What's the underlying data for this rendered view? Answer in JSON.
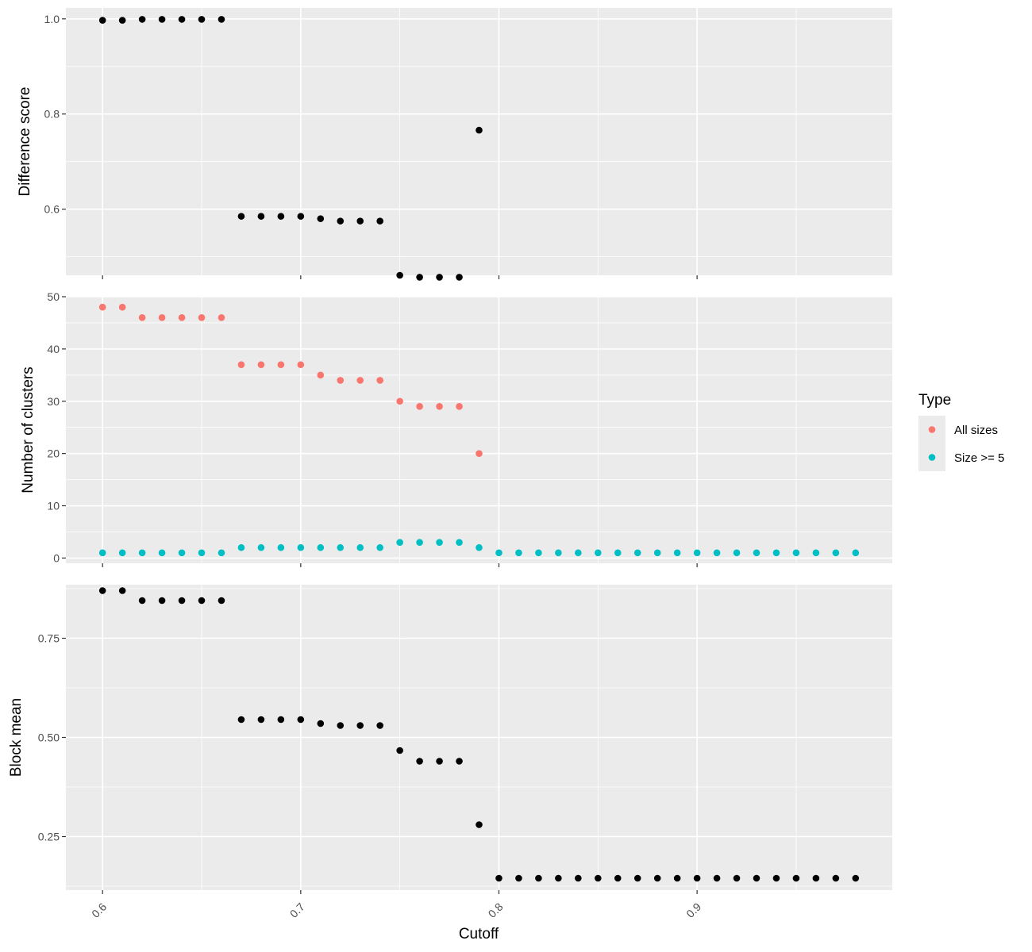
{
  "chart_data": {
    "type": "scatter",
    "xlabel": "Cutoff",
    "x_ticks": [
      "0.6",
      "0.7",
      "0.8",
      "0.9"
    ],
    "x_tick_values": [
      0.6,
      0.7,
      0.8,
      0.9
    ],
    "xlim": [
      0.5815,
      0.9985
    ],
    "legend": {
      "title": "Type",
      "placement": "right",
      "entries": [
        {
          "label": "All sizes",
          "color": "#F8766D"
        },
        {
          "label": "Size >= 5",
          "color": "#00BFC4"
        }
      ]
    },
    "panels": [
      {
        "id": "difference-score",
        "ylabel": "Difference score",
        "ylim": [
          0.461,
          1.023
        ],
        "y_ticks": [
          "0.6",
          "0.8",
          "1.0"
        ],
        "y_tick_values": [
          0.6,
          0.8,
          1.0
        ],
        "y_minor": [
          0.5,
          0.7,
          0.9
        ],
        "series": [
          {
            "color": "#000000",
            "x": [
              0.6,
              0.61,
              0.62,
              0.63,
              0.64,
              0.65,
              0.66,
              0.67,
              0.68,
              0.69,
              0.7,
              0.71,
              0.72,
              0.73,
              0.74,
              0.75,
              0.76,
              0.77,
              0.78,
              0.79
            ],
            "y": [
              0.997,
              0.997,
              0.999,
              0.999,
              0.999,
              0.999,
              0.999,
              0.585,
              0.585,
              0.585,
              0.585,
              0.58,
              0.575,
              0.575,
              0.575,
              0.461,
              0.457,
              0.457,
              0.457,
              0.766
            ]
          }
        ]
      },
      {
        "id": "number-of-clusters",
        "ylabel": "Number of clusters",
        "ylim": [
          -1.0,
          50.0
        ],
        "y_ticks": [
          "0",
          "10",
          "20",
          "30",
          "40",
          "50"
        ],
        "y_tick_values": [
          0,
          10,
          20,
          30,
          40,
          50
        ],
        "y_minor": [
          5,
          15,
          25,
          35,
          45
        ],
        "series": [
          {
            "name": "All sizes",
            "color": "#F8766D",
            "x": [
              0.6,
              0.61,
              0.62,
              0.63,
              0.64,
              0.65,
              0.66,
              0.67,
              0.68,
              0.69,
              0.7,
              0.71,
              0.72,
              0.73,
              0.74,
              0.75,
              0.76,
              0.77,
              0.78,
              0.79
            ],
            "y": [
              48,
              48,
              46,
              46,
              46,
              46,
              46,
              37,
              37,
              37,
              37,
              35,
              34,
              34,
              34,
              30,
              29,
              29,
              29,
              20
            ]
          },
          {
            "name": "Size >= 5",
            "color": "#00BFC4",
            "x": [
              0.6,
              0.61,
              0.62,
              0.63,
              0.64,
              0.65,
              0.66,
              0.67,
              0.68,
              0.69,
              0.7,
              0.71,
              0.72,
              0.73,
              0.74,
              0.75,
              0.76,
              0.77,
              0.78,
              0.79,
              0.8,
              0.81,
              0.82,
              0.83,
              0.84,
              0.85,
              0.86,
              0.87,
              0.88,
              0.89,
              0.9,
              0.91,
              0.92,
              0.93,
              0.94,
              0.95,
              0.96,
              0.97,
              0.98
            ],
            "y": [
              1,
              1,
              1,
              1,
              1,
              1,
              1,
              2,
              2,
              2,
              2,
              2,
              2,
              2,
              2,
              3,
              3,
              3,
              3,
              2,
              1,
              1,
              1,
              1,
              1,
              1,
              1,
              1,
              1,
              1,
              1,
              1,
              1,
              1,
              1,
              1,
              1,
              1,
              1
            ]
          }
        ]
      },
      {
        "id": "block-mean",
        "ylabel": "Block mean",
        "ylim": [
          0.115,
          0.885
        ],
        "y_ticks": [
          "0.25",
          "0.50",
          "0.75"
        ],
        "y_tick_values": [
          0.25,
          0.5,
          0.75
        ],
        "y_minor": [
          0.125,
          0.375,
          0.625,
          0.875
        ],
        "series": [
          {
            "color": "#000000",
            "x": [
              0.6,
              0.61,
              0.62,
              0.63,
              0.64,
              0.65,
              0.66,
              0.67,
              0.68,
              0.69,
              0.7,
              0.71,
              0.72,
              0.73,
              0.74,
              0.75,
              0.76,
              0.77,
              0.78,
              0.79,
              0.8,
              0.81,
              0.82,
              0.83,
              0.84,
              0.85,
              0.86,
              0.87,
              0.88,
              0.89,
              0.9,
              0.91,
              0.92,
              0.93,
              0.94,
              0.95,
              0.96,
              0.97,
              0.98
            ],
            "y": [
              0.87,
              0.87,
              0.845,
              0.845,
              0.845,
              0.845,
              0.845,
              0.545,
              0.545,
              0.545,
              0.545,
              0.535,
              0.53,
              0.53,
              0.53,
              0.467,
              0.44,
              0.44,
              0.44,
              0.28,
              0.145,
              0.145,
              0.145,
              0.145,
              0.145,
              0.145,
              0.145,
              0.145,
              0.145,
              0.145,
              0.145,
              0.145,
              0.145,
              0.145,
              0.145,
              0.145,
              0.145,
              0.145,
              0.145
            ]
          }
        ]
      }
    ]
  }
}
